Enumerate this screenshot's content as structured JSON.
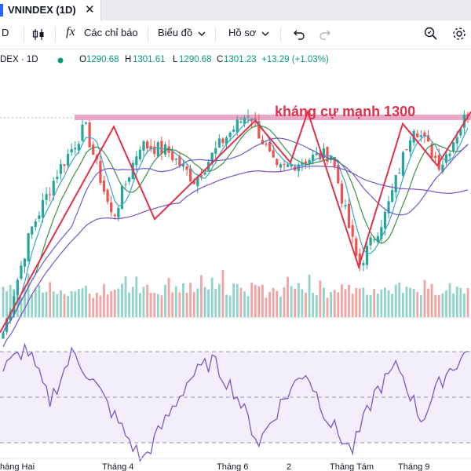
{
  "tab": {
    "title": "VNINDEX (1D)",
    "close": "✕"
  },
  "toolbar": {
    "interval": "D",
    "indicators_label": "Các chỉ báo",
    "chart_type_label": "Biểu đồ",
    "profile_label": "Hồ sơ"
  },
  "legend": {
    "symbol": "DEX · 1D",
    "open_label": "O",
    "open": "1290.68",
    "high_label": "H",
    "high": "1301.61",
    "low_label": "L",
    "low": "1290.68",
    "close_label": "C",
    "close": "1301.23",
    "change": "+13.29 (+1.03%)"
  },
  "annotation": {
    "text": "kháng cự mạnh 1300",
    "color": "#e0314b",
    "band_color": "#e9a7c8"
  },
  "colors": {
    "up": "#26a69a",
    "down": "#ef5350",
    "vol_up": "#8fd3c9",
    "vol_down": "#f4a3a3",
    "rsi_line": "#7e57c2",
    "rsi_band": "#f2eefb",
    "ma_fast": "#3aa3c9",
    "ma_mid": "#3d8f4a",
    "ma_slow": "#6b5bd0",
    "ma_long": "#7a4fc9",
    "pattern_line": "#e0314b"
  },
  "chart_data": {
    "type": "line",
    "x_labels": [
      "háng Hai",
      "Tháng 4",
      "Tháng 6",
      "2",
      "Tháng Tám",
      "Tháng 9"
    ],
    "price_path": [
      1228,
      1262,
      1282,
      1297,
      1266,
      1291,
      1289,
      1279,
      1292,
      1302,
      1282,
      1286,
      1288,
      1250,
      1268,
      1298,
      1284,
      1302
    ],
    "resistance_level": 1300,
    "zigzag_levels": [
      1228,
      1297,
      1266,
      1299,
      1285,
      1302,
      1250,
      1298,
      1284,
      1302
    ],
    "rsi_levels": [
      70,
      50,
      30
    ],
    "rsi_path": [
      62,
      72,
      48,
      70,
      55,
      38,
      22,
      40,
      58,
      66,
      52,
      30,
      48,
      62,
      40,
      26,
      52,
      64,
      40,
      60,
      70
    ],
    "volume_relative": [
      0.55,
      0.4,
      0.6,
      0.5,
      0.7,
      0.45,
      0.5,
      0.8,
      0.55,
      0.6,
      0.75,
      0.5,
      0.65,
      0.9,
      0.6,
      0.5,
      0.7,
      0.55,
      0.45,
      0.6,
      0.5,
      0.65,
      0.85,
      0.6
    ]
  }
}
